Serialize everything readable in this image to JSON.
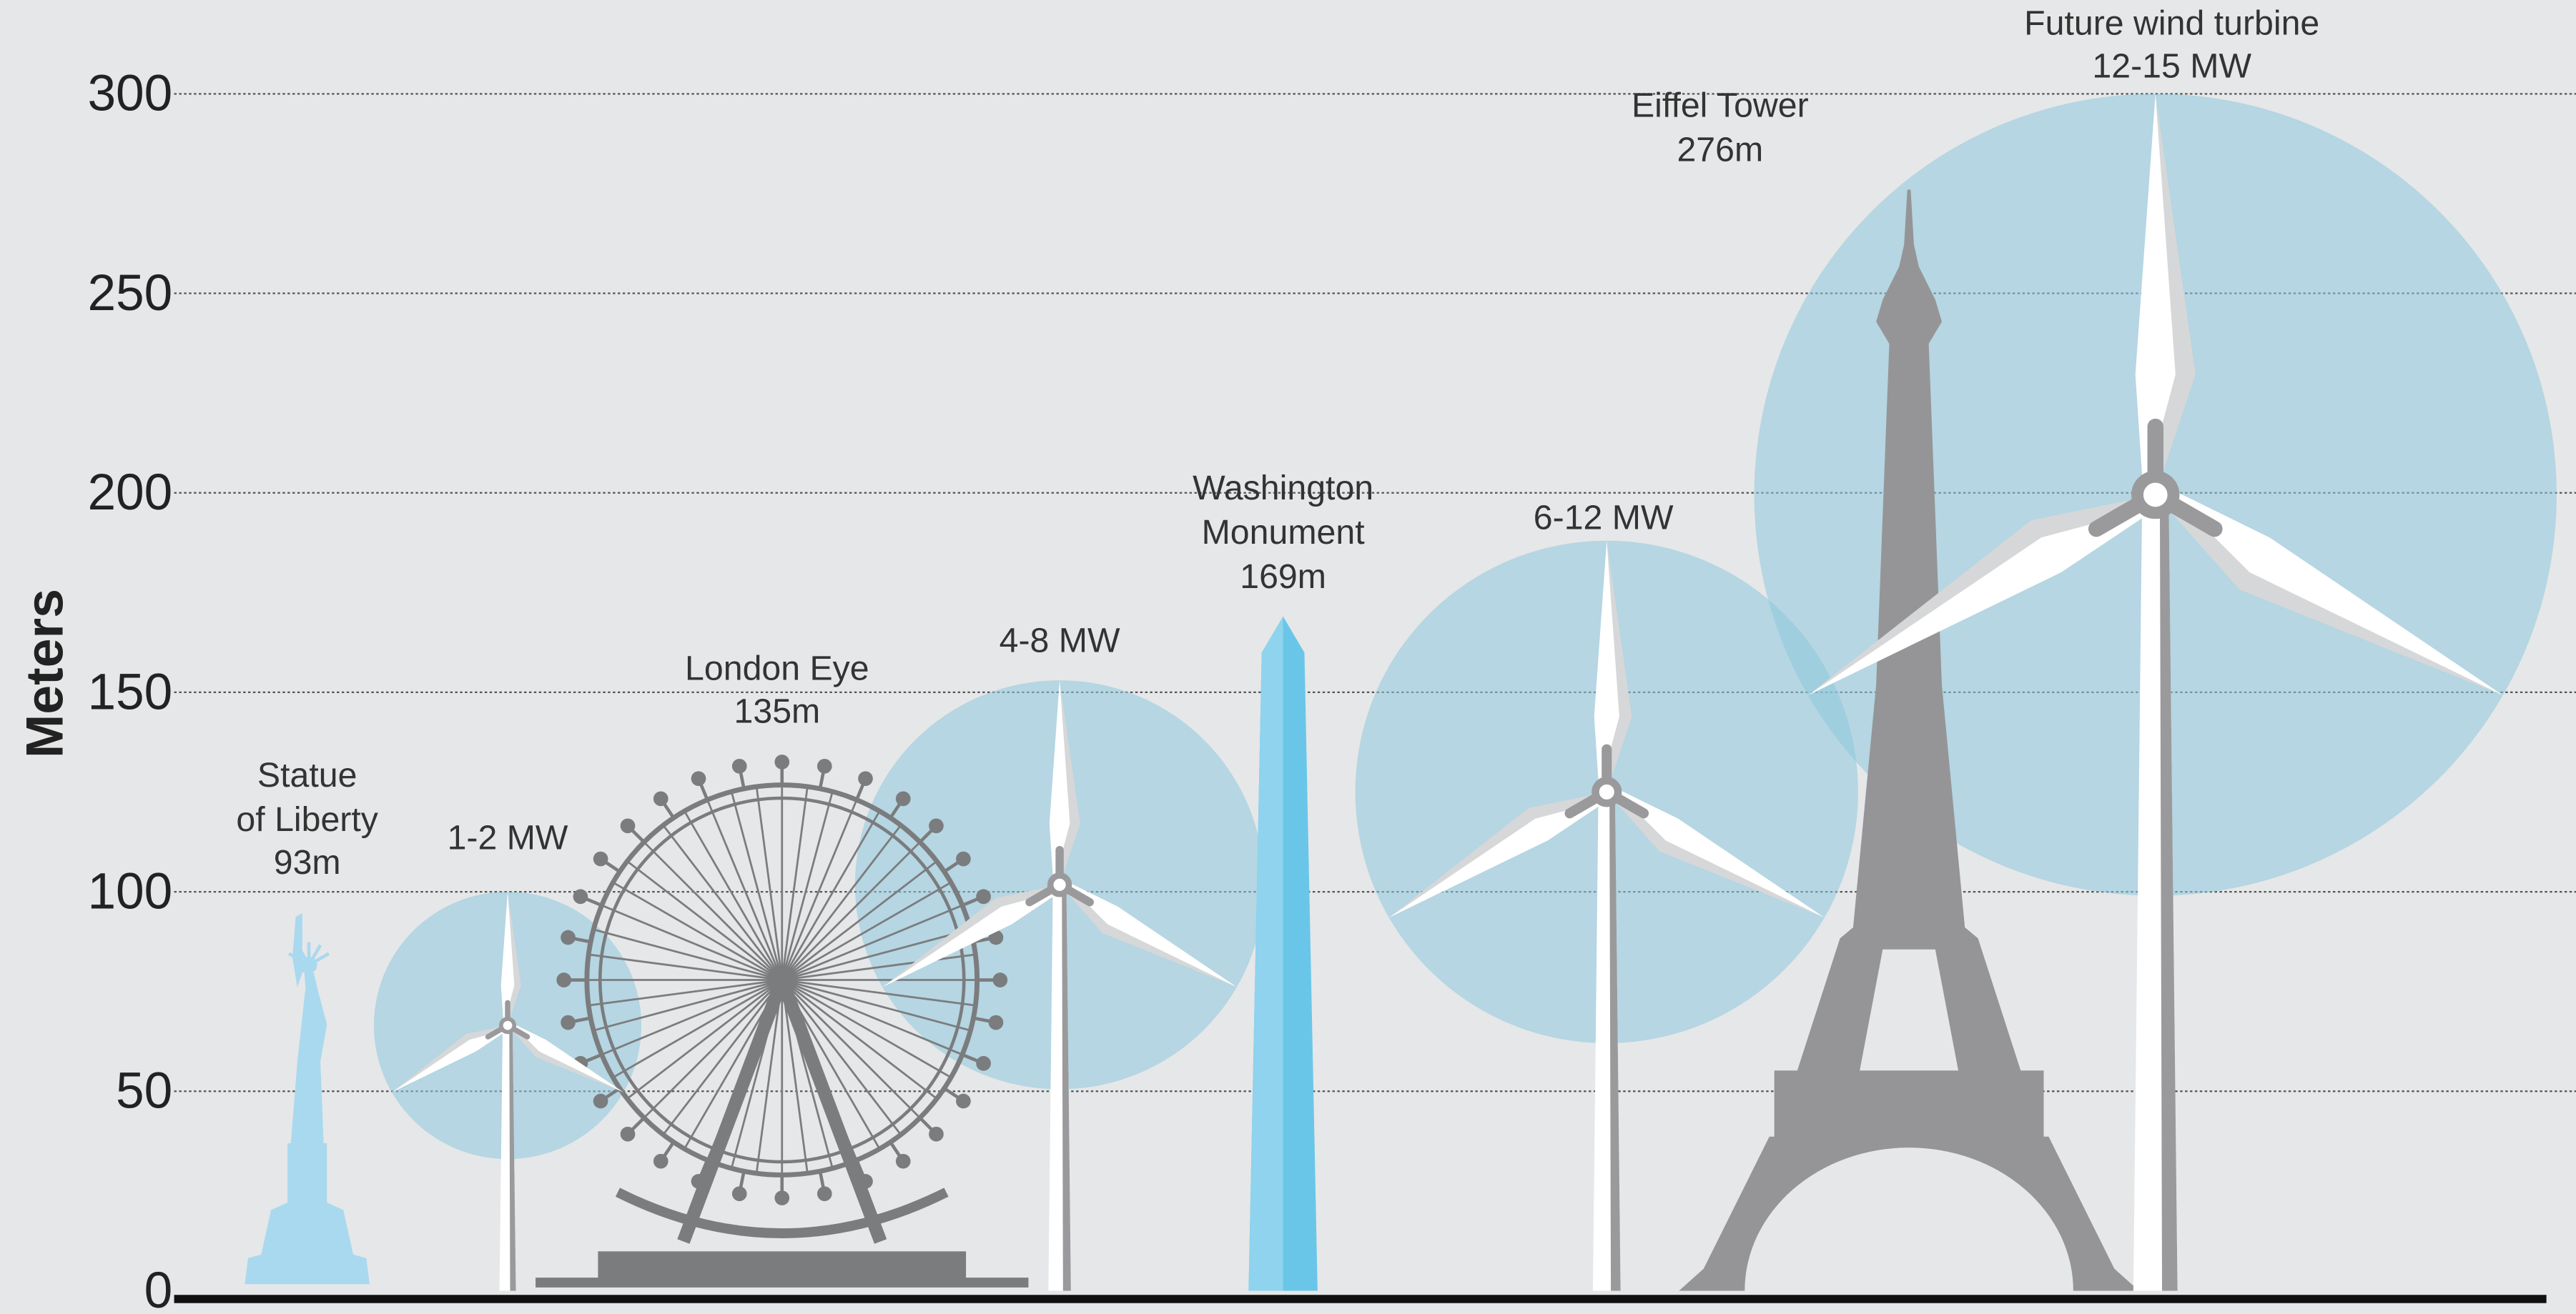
{
  "chart_data": {
    "type": "pictograph",
    "ylabel": "Meters",
    "categories": [
      "Statue\nof Liberty",
      "1-2 MW",
      "London Eye",
      "4-8 MW",
      "Washington\nMonument",
      "6-12 MW",
      "Eiffel Tower",
      "Future wind turbine\n12-15 MW"
    ],
    "values": [
      93,
      100,
      135,
      153,
      169,
      188,
      276,
      300
    ],
    "value_labels": [
      "93m",
      null,
      "135m",
      null,
      "169m",
      null,
      "276m",
      null
    ],
    "kinds": [
      "statue",
      "turbine",
      "wheel",
      "turbine",
      "obelisk",
      "turbine",
      "tower",
      "turbine"
    ],
    "colors": [
      "#a9d9ee",
      "#ffffff",
      "#7b7c7e",
      "#ffffff",
      "#6ac6e8",
      "#ffffff",
      "#959597",
      "#ffffff"
    ],
    "ylim": [
      0,
      300
    ],
    "yticks": [
      0,
      50,
      100,
      150,
      200,
      250,
      300
    ],
    "grid": true
  }
}
